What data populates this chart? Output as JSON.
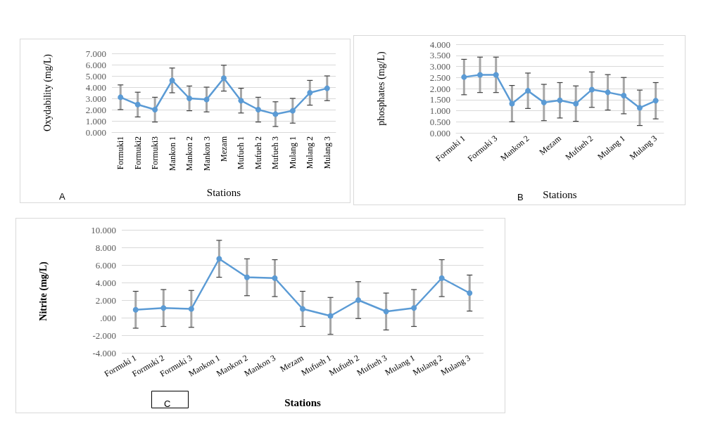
{
  "chart_data": [
    {
      "type": "line",
      "ylabel": "Oxydability (mg/L)",
      "xlabel": "Stations",
      "annotations": [
        "A"
      ],
      "categories": [
        "Formuki1",
        "Formuki2",
        "Formuki3",
        "Mankon 1",
        "Mankon 2",
        "Mankon 3",
        "Mezam",
        "Mufueh 1",
        "Mufueh 2",
        "Mufueh 3",
        "Mulang 1",
        "Mulang 2",
        "Mulang 3"
      ],
      "series": [
        {
          "color": "#5b9bd5",
          "values": [
            3.1,
            2.45,
            2.0,
            4.6,
            3.0,
            2.9,
            4.8,
            2.8,
            2.0,
            1.6,
            1.9,
            3.5,
            3.9
          ],
          "errors": [
            1.1,
            1.1,
            1.1,
            1.1,
            1.1,
            1.1,
            1.15,
            1.1,
            1.1,
            1.1,
            1.1,
            1.1,
            1.1
          ]
        }
      ],
      "ylim": [
        0,
        7
      ],
      "yticks": [
        {
          "value": 0,
          "label": "0.000"
        },
        {
          "value": 1,
          "label": "1.000"
        },
        {
          "value": 2,
          "label": "2.000"
        },
        {
          "value": 3,
          "label": "3.000"
        },
        {
          "value": 4,
          "label": "4.000"
        },
        {
          "value": 5,
          "label": "5.000"
        },
        {
          "value": 6,
          "label": "6.000"
        },
        {
          "value": 7,
          "label": "7.000"
        }
      ],
      "grid": "y",
      "marker": "circle",
      "line_style": "solid"
    },
    {
      "type": "line",
      "ylabel": "phosphates (mg/L)",
      "xlabel": "Stations",
      "annotations": [
        "B"
      ],
      "categories": [
        "Formuki 1",
        null,
        "Formuki 3",
        null,
        "Mankon 2",
        null,
        "Mezam",
        null,
        "Mufueh 2",
        null,
        "Mulang 1",
        null,
        "Mulang 3"
      ],
      "series": [
        {
          "color": "#5b9bd5",
          "values": [
            2.52,
            2.62,
            2.62,
            1.32,
            1.9,
            1.37,
            1.47,
            1.32,
            1.95,
            1.83,
            1.68,
            1.13,
            1.45
          ],
          "errors": [
            0.8,
            0.8,
            0.8,
            0.82,
            0.8,
            0.82,
            0.8,
            0.8,
            0.8,
            0.8,
            0.82,
            0.8,
            0.82
          ]
        }
      ],
      "ylim": [
        0,
        4
      ],
      "yticks": [
        {
          "value": 0,
          "label": "0.000"
        },
        {
          "value": 0.5,
          "label": "0.500"
        },
        {
          "value": 1,
          "label": "1.000"
        },
        {
          "value": 1.5,
          "label": "1.500"
        },
        {
          "value": 2,
          "label": "2.000"
        },
        {
          "value": 2.5,
          "label": "2.500"
        },
        {
          "value": 3,
          "label": "3.000"
        },
        {
          "value": 3.5,
          "label": "3.500"
        },
        {
          "value": 4,
          "label": "4.000"
        }
      ],
      "grid": "y",
      "marker": "circle",
      "line_style": "solid"
    },
    {
      "type": "line",
      "ylabel": "Nitrite (mg/L)",
      "xlabel": "Stations",
      "annotations": [
        "C"
      ],
      "categories": [
        "Formuki 1",
        "Formuki 2",
        "Formuki 3",
        "Mankon 1",
        "Mankon 2",
        "Mankon 3",
        "Mezam",
        "Mufueh 1",
        "Mufueh 2",
        "Mufueh 3",
        "Mulang 1",
        "Mulang 2",
        "Mulang 3"
      ],
      "series": [
        {
          "color": "#5b9bd5",
          "values": [
            0.9,
            1.1,
            1.0,
            6.7,
            4.6,
            4.5,
            1.0,
            0.2,
            2.0,
            0.7,
            1.1,
            4.5,
            2.8
          ],
          "errors": [
            2.1,
            2.1,
            2.1,
            2.1,
            2.1,
            2.1,
            2.0,
            2.1,
            2.1,
            2.1,
            2.1,
            2.1,
            2.05
          ]
        }
      ],
      "ylim": [
        -4,
        10
      ],
      "yticks": [
        {
          "value": -4,
          "label": "-4.000"
        },
        {
          "value": -2,
          "label": "-2.000"
        },
        {
          "value": 0,
          "label": ".000"
        },
        {
          "value": 2,
          "label": "2.000"
        },
        {
          "value": 4,
          "label": "4.000"
        },
        {
          "value": 6,
          "label": "6.000"
        },
        {
          "value": 8,
          "label": "8.000"
        },
        {
          "value": 10,
          "label": "10.000"
        }
      ],
      "grid": "y",
      "marker": "circle",
      "line_style": "solid"
    }
  ]
}
